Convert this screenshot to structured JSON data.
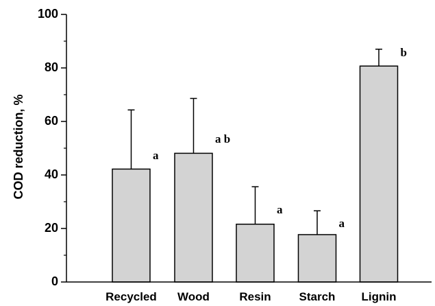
{
  "chart_data": {
    "type": "bar",
    "categories": [
      "Recycled",
      "Wood",
      "Resin",
      "Starch",
      "Lignin"
    ],
    "values": [
      42.2,
      48.1,
      21.6,
      17.7,
      80.7
    ],
    "errors": [
      22.1,
      20.5,
      14.0,
      8.9,
      6.3
    ],
    "significance": [
      "a",
      "a b",
      "a",
      "a",
      "b"
    ],
    "xlabel": "",
    "ylabel": "COD reduction, %",
    "ylim": [
      0,
      100
    ],
    "yticks": [
      0,
      20,
      40,
      60,
      80,
      100
    ],
    "yminor_step": 10,
    "bar_color": "#d3d3d3",
    "edge_color": "#000000",
    "grid": false,
    "legend": "none"
  }
}
